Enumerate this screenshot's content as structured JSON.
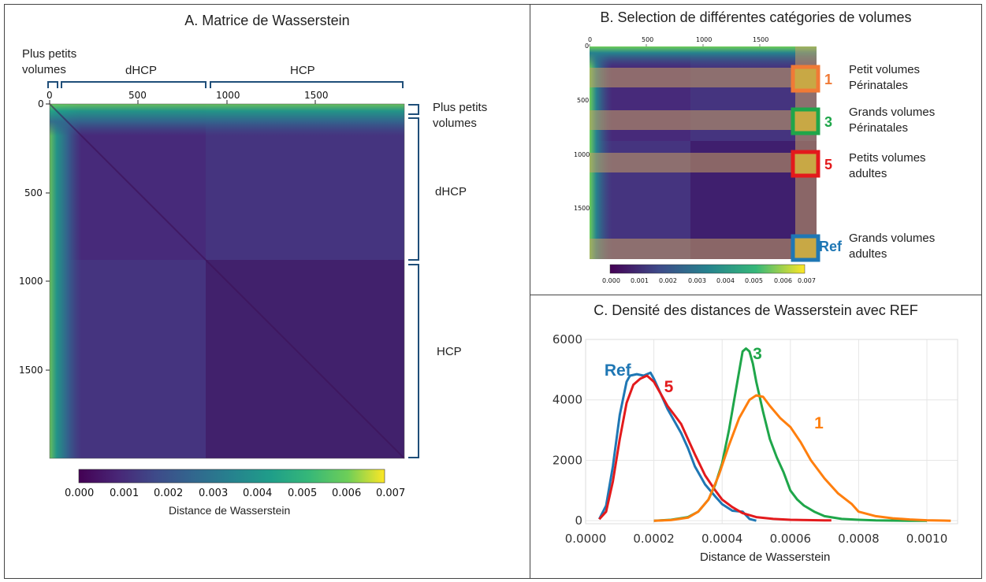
{
  "panel_a": {
    "title": "A. Matrice de Wasserstein",
    "top_labels": {
      "small": "Plus petits\nvolumes",
      "dhcp": "dHCP",
      "hcp": "HCP"
    },
    "right_labels": {
      "small": "Plus petits\nvolumes",
      "dhcp": "dHCP",
      "hcp": "HCP"
    },
    "x_ticks": [
      "0",
      "500",
      "1000",
      "1500"
    ],
    "y_ticks": [
      "0",
      "500",
      "1000",
      "1500"
    ],
    "colorbar_ticks": [
      "0.000",
      "0.001",
      "0.002",
      "0.003",
      "0.004",
      "0.005",
      "0.006",
      "0.007"
    ],
    "colorbar_label": "Distance de Wasserstein"
  },
  "panel_b": {
    "title": "B. Selection de différentes catégories de volumes",
    "x_ticks": [
      "0",
      "500",
      "1000",
      "1500"
    ],
    "y_ticks": [
      "0",
      "500",
      "1000",
      "1500"
    ],
    "colorbar_ticks": [
      "0.000",
      "0.001",
      "0.002",
      "0.003",
      "0.004",
      "0.005",
      "0.006",
      "0.007"
    ],
    "categories": [
      {
        "marker": "1",
        "color": "#f07a36",
        "label": "Petit volumes\nPérinatales"
      },
      {
        "marker": "3",
        "color": "#1fa64a",
        "label": "Grands volumes\nPérinatales"
      },
      {
        "marker": "5",
        "color": "#e31a1c",
        "label": "Petits volumes\nadultes"
      },
      {
        "marker": "Ref",
        "color": "#1f77b4",
        "label": "Grands volumes\nadultes"
      }
    ]
  },
  "panel_c": {
    "title": "C. Densité des distances de Wasserstein avec REF",
    "xlabel": "Distance de Wasserstein"
  },
  "chart_data": [
    {
      "type": "heatmap",
      "title": "A. Matrice de Wasserstein",
      "x_ticks": [
        0,
        500,
        1000,
        1500
      ],
      "y_ticks": [
        0,
        500,
        1000,
        1500
      ],
      "n": 2000,
      "groups": [
        {
          "name": "Plus petits volumes",
          "range": [
            0,
            40
          ]
        },
        {
          "name": "dHCP",
          "range": [
            0,
            880
          ]
        },
        {
          "name": "HCP",
          "range": [
            880,
            2000
          ]
        }
      ],
      "colorbar": {
        "label": "Distance de Wasserstein",
        "range": [
          0.0,
          0.007
        ]
      }
    },
    {
      "type": "line",
      "title": "C. Densité des distances de Wasserstein avec REF",
      "xlabel": "Distance de Wasserstein",
      "ylabel": "",
      "xlim": [
        0.0,
        0.00109
      ],
      "ylim": [
        -100,
        6000
      ],
      "x_ticks": [
        "0.0000",
        "0.0002",
        "0.0004",
        "0.0006",
        "0.0008",
        "0.0010"
      ],
      "y_ticks": [
        "0",
        "2000",
        "4000",
        "6000"
      ],
      "grid": true,
      "series": [
        {
          "name": "Ref",
          "color": "#1f77b4",
          "labelx": 5.5e-05,
          "labely": 4800,
          "x": [
            4e-05,
            6e-05,
            8e-05,
            0.0001,
            0.00012,
            0.00013,
            0.00015,
            0.00017,
            0.00019,
            0.0002,
            0.00022,
            0.00024,
            0.00026,
            0.00028,
            0.0003,
            0.00032,
            0.00035,
            0.00038,
            0.0004,
            0.00043,
            0.00046,
            0.00048,
            0.0005
          ],
          "y": [
            50,
            500,
            1800,
            3500,
            4600,
            4800,
            4850,
            4800,
            4900,
            4700,
            4200,
            3700,
            3300,
            2900,
            2400,
            1800,
            1200,
            800,
            550,
            330,
            300,
            60,
            0
          ]
        },
        {
          "name": "5",
          "color": "#e31a1c",
          "labelx": 0.00023,
          "labely": 4250,
          "x": [
            4e-05,
            6e-05,
            8e-05,
            0.0001,
            0.00012,
            0.00014,
            0.00016,
            0.00018,
            0.0002,
            0.00022,
            0.00024,
            0.00026,
            0.00028,
            0.0003,
            0.00032,
            0.00035,
            0.00038,
            0.0004,
            0.00043,
            0.00046,
            0.0005,
            0.00055,
            0.0006,
            0.00065,
            0.0007,
            0.00072
          ],
          "y": [
            50,
            300,
            1300,
            2700,
            3900,
            4500,
            4700,
            4800,
            4600,
            4200,
            3800,
            3500,
            3200,
            2700,
            2200,
            1500,
            1000,
            700,
            450,
            250,
            120,
            60,
            30,
            20,
            10,
            10
          ]
        },
        {
          "name": "3",
          "color": "#1fa64a",
          "labelx": 0.00049,
          "labely": 5350,
          "x": [
            0.0002,
            0.00025,
            0.0003,
            0.00033,
            0.00036,
            0.00038,
            0.0004,
            0.00042,
            0.00044,
            0.00046,
            0.00047,
            0.00048,
            0.00049,
            0.0005,
            0.00052,
            0.00054,
            0.00056,
            0.00058,
            0.0006,
            0.00062,
            0.00064,
            0.00067,
            0.0007,
            0.00075,
            0.0008,
            0.00085,
            0.0009,
            0.00095,
            0.001
          ],
          "y": [
            0,
            30,
            120,
            300,
            700,
            1200,
            1900,
            3000,
            4300,
            5600,
            5700,
            5600,
            5200,
            4600,
            3600,
            2700,
            2100,
            1600,
            1000,
            700,
            500,
            300,
            150,
            60,
            30,
            10,
            5,
            0,
            0
          ]
        },
        {
          "name": "1",
          "color": "#ff7f0e",
          "labelx": 0.00067,
          "labely": 3050,
          "x": [
            0.0002,
            0.00025,
            0.0003,
            0.00033,
            0.00036,
            0.00039,
            0.00042,
            0.00045,
            0.00048,
            0.0005,
            0.00052,
            0.00054,
            0.00057,
            0.0006,
            0.00063,
            0.00066,
            0.0007,
            0.00074,
            0.00078,
            0.0008,
            0.00085,
            0.0009,
            0.00095,
            0.001,
            0.00105,
            0.00107
          ],
          "y": [
            0,
            20,
            100,
            300,
            700,
            1500,
            2500,
            3400,
            4000,
            4150,
            4100,
            3800,
            3400,
            3100,
            2600,
            2000,
            1400,
            900,
            550,
            300,
            150,
            80,
            40,
            15,
            5,
            0
          ]
        }
      ]
    }
  ]
}
